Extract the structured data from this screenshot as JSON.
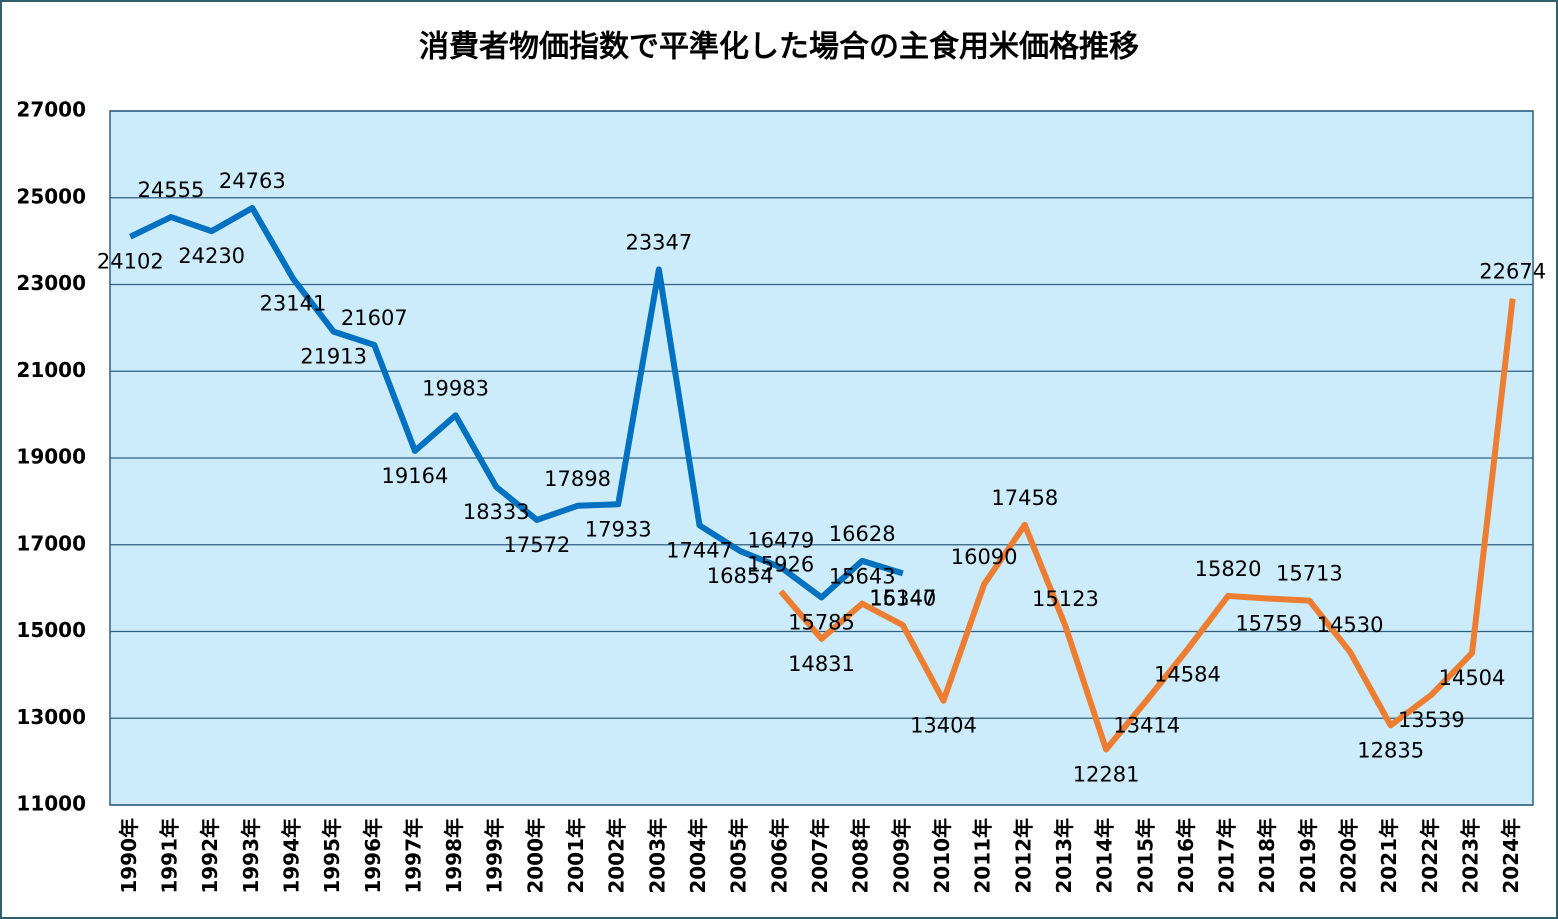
{
  "chart_data": {
    "type": "line",
    "title": "消費者物価指数で平準化した場合の主食用米価格推移",
    "categories": [
      "1990年",
      "1991年",
      "1992年",
      "1993年",
      "1994年",
      "1995年",
      "1996年",
      "1997年",
      "1998年",
      "1999年",
      "2000年",
      "2001年",
      "2002年",
      "2003年",
      "2004年",
      "2005年",
      "2006年",
      "2007年",
      "2008年",
      "2009年",
      "2010年",
      "2011年",
      "2012年",
      "2013年",
      "2014年",
      "2015年",
      "2016年",
      "2017年",
      "2018年",
      "2019年",
      "2020年",
      "2021年",
      "2022年",
      "2023年",
      "2024年"
    ],
    "series": [
      {
        "color": "#0070c0",
        "values": [
          24102,
          24555,
          24230,
          24763,
          23141,
          21913,
          21607,
          19164,
          19983,
          18333,
          17572,
          17898,
          17933,
          23347,
          17447,
          16854,
          16479,
          15785,
          16628,
          16340,
          null,
          null,
          null,
          null,
          null,
          null,
          null,
          null,
          null,
          null,
          null,
          null,
          null,
          null,
          null
        ]
      },
      {
        "color": "#ed7d31",
        "values": [
          null,
          null,
          null,
          null,
          null,
          null,
          null,
          null,
          null,
          null,
          null,
          null,
          null,
          null,
          null,
          null,
          15926,
          14831,
          15643,
          15147,
          13404,
          16090,
          17458,
          15123,
          12281,
          13414,
          14584,
          15820,
          15759,
          15713,
          14530,
          12835,
          13539,
          14504,
          22674
        ]
      }
    ],
    "ylim": [
      11000,
      27000
    ],
    "yticks": [
      11000,
      13000,
      15000,
      17000,
      19000,
      21000,
      23000,
      25000,
      27000
    ],
    "grid": true
  }
}
